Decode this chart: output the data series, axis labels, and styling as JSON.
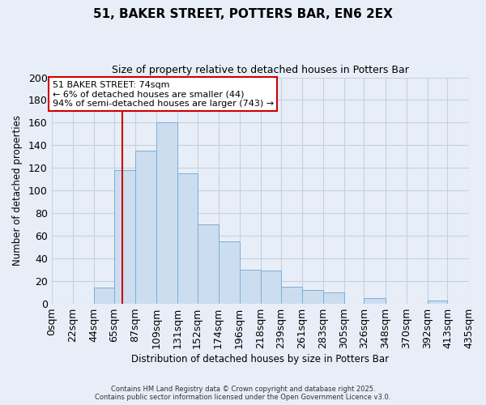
{
  "title": "51, BAKER STREET, POTTERS BAR, EN6 2EX",
  "subtitle": "Size of property relative to detached houses in Potters Bar",
  "xlabel": "Distribution of detached houses by size in Potters Bar",
  "ylabel": "Number of detached properties",
  "bar_color": "#ccddf0",
  "bar_edgecolor": "#7bafd4",
  "background_color": "#e8eef8",
  "grid_color": "#c8d0e0",
  "bin_edges": [
    0,
    22,
    44,
    65,
    87,
    109,
    131,
    152,
    174,
    196,
    218,
    239,
    261,
    283,
    305,
    326,
    348,
    370,
    392,
    413,
    435
  ],
  "bin_labels": [
    "0sqm",
    "22sqm",
    "44sqm",
    "65sqm",
    "87sqm",
    "109sqm",
    "131sqm",
    "152sqm",
    "174sqm",
    "196sqm",
    "218sqm",
    "239sqm",
    "261sqm",
    "283sqm",
    "305sqm",
    "326sqm",
    "348sqm",
    "370sqm",
    "392sqm",
    "413sqm",
    "435sqm"
  ],
  "counts": [
    0,
    0,
    14,
    118,
    135,
    160,
    115,
    70,
    55,
    30,
    29,
    15,
    12,
    10,
    0,
    5,
    0,
    0,
    3,
    0
  ],
  "ylim": [
    0,
    200
  ],
  "yticks": [
    0,
    20,
    40,
    60,
    80,
    100,
    120,
    140,
    160,
    180,
    200
  ],
  "property_line_x": 74,
  "property_line_color": "#cc0000",
  "annotation_title": "51 BAKER STREET: 74sqm",
  "annotation_line1": "← 6% of detached houses are smaller (44)",
  "annotation_line2": "94% of semi-detached houses are larger (743) →",
  "annotation_box_facecolor": "#ffffff",
  "annotation_box_edgecolor": "#cc0000",
  "footnote1": "Contains HM Land Registry data © Crown copyright and database right 2025.",
  "footnote2": "Contains public sector information licensed under the Open Government Licence v3.0."
}
